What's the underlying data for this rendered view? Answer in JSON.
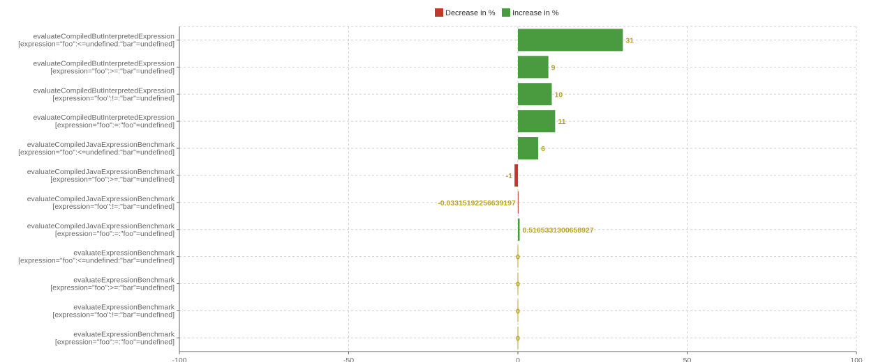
{
  "chart_data": {
    "type": "bar",
    "orientation": "horizontal",
    "legend_position": "top-center",
    "grid": true,
    "xlim": [
      -100,
      100
    ],
    "xticks": [
      "-100",
      "-50",
      "0",
      "50",
      "100"
    ],
    "legend": [
      {
        "name": "Decrease in %",
        "color": "#c0392b"
      },
      {
        "name": "Increase in %",
        "color": "#4a9a3f"
      }
    ],
    "colors": {
      "increase": "#4a9a3f",
      "decrease": "#c0392b",
      "label": "#b9a31f"
    },
    "categories": [
      {
        "line1": "evaluateCompiledButInterpretedExpression",
        "line2": "[expression=\"foo\":<=undefined:\"bar\"=undefined]"
      },
      {
        "line1": "evaluateCompiledButInterpretedExpression",
        "line2": "[expression=\"foo\":>=:\"bar\"=undefined]"
      },
      {
        "line1": "evaluateCompiledButInterpretedExpression",
        "line2": "[expression=\"foo\":!=:\"bar\"=undefined]"
      },
      {
        "line1": "evaluateCompiledButInterpretedExpression",
        "line2": "[expression=\"foo\":=:\"foo\"=undefined]"
      },
      {
        "line1": "evaluateCompiledJavaExpressionBenchmark",
        "line2": "[expression=\"foo\":<=undefined:\"bar\"=undefined]"
      },
      {
        "line1": "evaluateCompiledJavaExpressionBenchmark",
        "line2": "[expression=\"foo\":>=:\"bar\"=undefined]"
      },
      {
        "line1": "evaluateCompiledJavaExpressionBenchmark",
        "line2": "[expression=\"foo\":!=:\"bar\"=undefined]"
      },
      {
        "line1": "evaluateCompiledJavaExpressionBenchmark",
        "line2": "[expression=\"foo\":=:\"foo\"=undefined]"
      },
      {
        "line1": "evaluateExpressionBenchmark",
        "line2": "[expression=\"foo\":<=undefined:\"bar\"=undefined]"
      },
      {
        "line1": "evaluateExpressionBenchmark",
        "line2": "[expression=\"foo\":>=:\"bar\"=undefined]"
      },
      {
        "line1": "evaluateExpressionBenchmark",
        "line2": "[expression=\"foo\":!=:\"bar\"=undefined]"
      },
      {
        "line1": "evaluateExpressionBenchmark",
        "line2": "[expression=\"foo\":=:\"foo\"=undefined]"
      }
    ],
    "values": [
      31,
      9,
      10,
      11,
      6,
      -1,
      -0.03315192256639197,
      0.5165331300658927,
      0,
      0,
      0,
      0
    ],
    "value_labels": [
      "31",
      "9",
      "10",
      "11",
      "6",
      "-1",
      "-0.03315192256639197",
      "0.5165331300658927",
      "0",
      "0",
      "0",
      "0"
    ]
  }
}
